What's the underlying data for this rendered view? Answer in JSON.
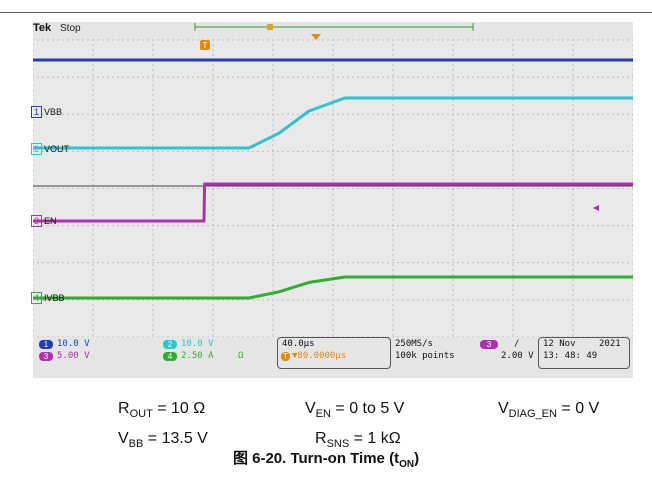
{
  "header": {
    "brand": "Tek",
    "run_state": "Stop",
    "trigger_marker": "T"
  },
  "channels": [
    {
      "id": "1",
      "label": "VBB",
      "color": "#1f3fb3"
    },
    {
      "id": "2",
      "label": "VOUT",
      "color": "#2cc4d3"
    },
    {
      "id": "3",
      "label": "EN",
      "color": "#b02fb0"
    },
    {
      "id": "4",
      "label": "IVBB",
      "color": "#2fae2f"
    }
  ],
  "status": {
    "ch1_scale": "10.0 V",
    "ch2_scale": "10.0 V",
    "ch3_scale": "5.00 V",
    "ch4_scale": "2.50 A",
    "ch4_suffix": "Ω",
    "timebase": "40.0µs",
    "trigger_pos": "▼80.0000µs",
    "sample_rate": "250MS/s",
    "record_length": "100k points",
    "trigger_ch": "3",
    "trigger_slope": "/",
    "trigger_level": "2.00 V",
    "date": "12 Nov",
    "year": "2021",
    "time": "13: 48: 49"
  },
  "conditions": {
    "rout": {
      "sym": "R",
      "sub": "OUT",
      "val": " = 10 Ω"
    },
    "ven": {
      "sym": "V",
      "sub": "EN",
      "val": " = 0 to 5 V"
    },
    "vdiag": {
      "sym": "V",
      "sub": "DIAG_EN",
      "val": " = 0 V"
    },
    "vbb": {
      "sym": "V",
      "sub": "BB",
      "val": " = 13.5 V"
    },
    "rsns": {
      "sym": "R",
      "sub": "SNS",
      "val": " = 1 kΩ"
    }
  },
  "caption": {
    "prefix": "图 6-20. Turn-on Time (t",
    "sub": "ON",
    "suffix": ")"
  },
  "chart_data": {
    "type": "line",
    "x_units": "divisions (40.0µs/div)",
    "xlim": [
      0,
      10
    ],
    "grid": true,
    "series": [
      {
        "name": "VBB",
        "x": [
          0,
          10
        ],
        "y": [
          13.5,
          13.5
        ]
      },
      {
        "name": "VOUT",
        "x": [
          0,
          3.6,
          4.1,
          4.6,
          5.2,
          10
        ],
        "y": [
          0,
          0,
          4,
          10,
          13.5,
          13.5
        ]
      },
      {
        "name": "EN",
        "x": [
          0,
          2.85,
          2.86,
          10
        ],
        "y": [
          0,
          0,
          5,
          5
        ]
      },
      {
        "name": "IVBB",
        "x": [
          0,
          3.6,
          4.1,
          4.6,
          5.2,
          10
        ],
        "y": [
          0,
          0,
          0.4,
          1,
          1.35,
          1.35
        ]
      }
    ]
  }
}
